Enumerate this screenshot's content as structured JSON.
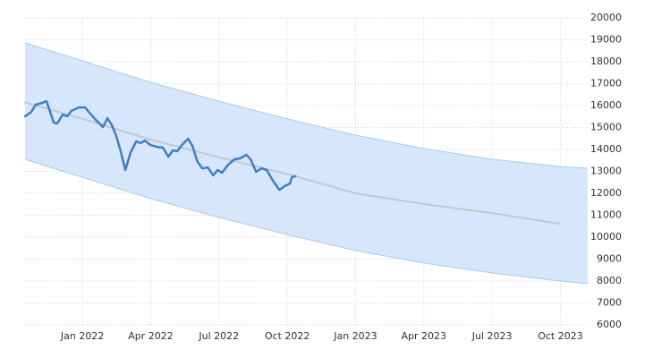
{
  "chart_data": {
    "type": "line",
    "xlim": [
      2021.79,
      2023.85
    ],
    "ylim": [
      6000,
      20000
    ],
    "xticks": [
      {
        "value": 2022.0,
        "label": "Jan 2022"
      },
      {
        "value": 2022.25,
        "label": "Apr 2022"
      },
      {
        "value": 2022.5,
        "label": "Jul 2022"
      },
      {
        "value": 2022.75,
        "label": "Oct 2022"
      },
      {
        "value": 2023.0,
        "label": "Jan 2023"
      },
      {
        "value": 2023.25,
        "label": "Apr 2023"
      },
      {
        "value": 2023.5,
        "label": "Jul 2023"
      },
      {
        "value": 2023.75,
        "label": "Oct 2023"
      }
    ],
    "yticks": [
      6000,
      7000,
      8000,
      9000,
      10000,
      11000,
      12000,
      13000,
      14000,
      15000,
      16000,
      17000,
      18000,
      19000,
      20000
    ],
    "grid": true,
    "band": {
      "color": "#d7e7fb",
      "edge_color": "#a8c8ee",
      "x": [
        2021.79,
        2022.0,
        2022.25,
        2022.5,
        2022.75,
        2023.0,
        2023.25,
        2023.5,
        2023.75,
        2023.85
      ],
      "upper": [
        18860,
        18040,
        17060,
        16200,
        15390,
        14650,
        14040,
        13550,
        13220,
        13140
      ],
      "lower": [
        13550,
        12730,
        11760,
        10900,
        10120,
        9390,
        8820,
        8370,
        8000,
        7880
      ]
    },
    "series": [
      {
        "color": "#c3c7ce",
        "width": 2,
        "x": [
          2021.79,
          2022.0,
          2022.25,
          2022.5,
          2022.78,
          2023.0,
          2023.25,
          2023.5,
          2023.75
        ],
        "values": [
          16150,
          15400,
          14450,
          13650,
          12780,
          12000,
          11510,
          11100,
          10610
        ]
      },
      {
        "color": "#3f7fc0",
        "width": 2.5,
        "x": [
          2021.79,
          2021.813,
          2021.829,
          2021.852,
          2021.869,
          2021.882,
          2021.895,
          2021.908,
          2021.928,
          2021.944,
          2021.96,
          2021.987,
          2022.01,
          2022.026,
          2022.052,
          2022.075,
          2022.092,
          2022.108,
          2022.124,
          2022.141,
          2022.157,
          2022.177,
          2022.197,
          2022.213,
          2022.229,
          2022.249,
          2022.272,
          2022.295,
          2022.315,
          2022.331,
          2022.347,
          2022.364,
          2022.387,
          2022.403,
          2022.42,
          2022.439,
          2022.459,
          2022.479,
          2022.495,
          2022.511,
          2022.534,
          2022.557,
          2022.577,
          2022.6,
          2022.616,
          2022.636,
          2022.656,
          2022.675,
          2022.698,
          2022.721,
          2022.741,
          2022.76,
          2022.767,
          2022.78
        ],
        "values": [
          15510,
          15710,
          16040,
          16120,
          16200,
          15710,
          15220,
          15180,
          15590,
          15510,
          15760,
          15920,
          15920,
          15670,
          15310,
          15020,
          15430,
          15100,
          14610,
          13880,
          13060,
          13880,
          14370,
          14290,
          14410,
          14200,
          14120,
          14080,
          13670,
          13960,
          13920,
          14200,
          14490,
          14160,
          13470,
          13140,
          13180,
          12820,
          13060,
          12940,
          13310,
          13550,
          13590,
          13760,
          13550,
          12980,
          13140,
          13060,
          12570,
          12160,
          12330,
          12450,
          12730,
          12780
        ]
      }
    ]
  }
}
